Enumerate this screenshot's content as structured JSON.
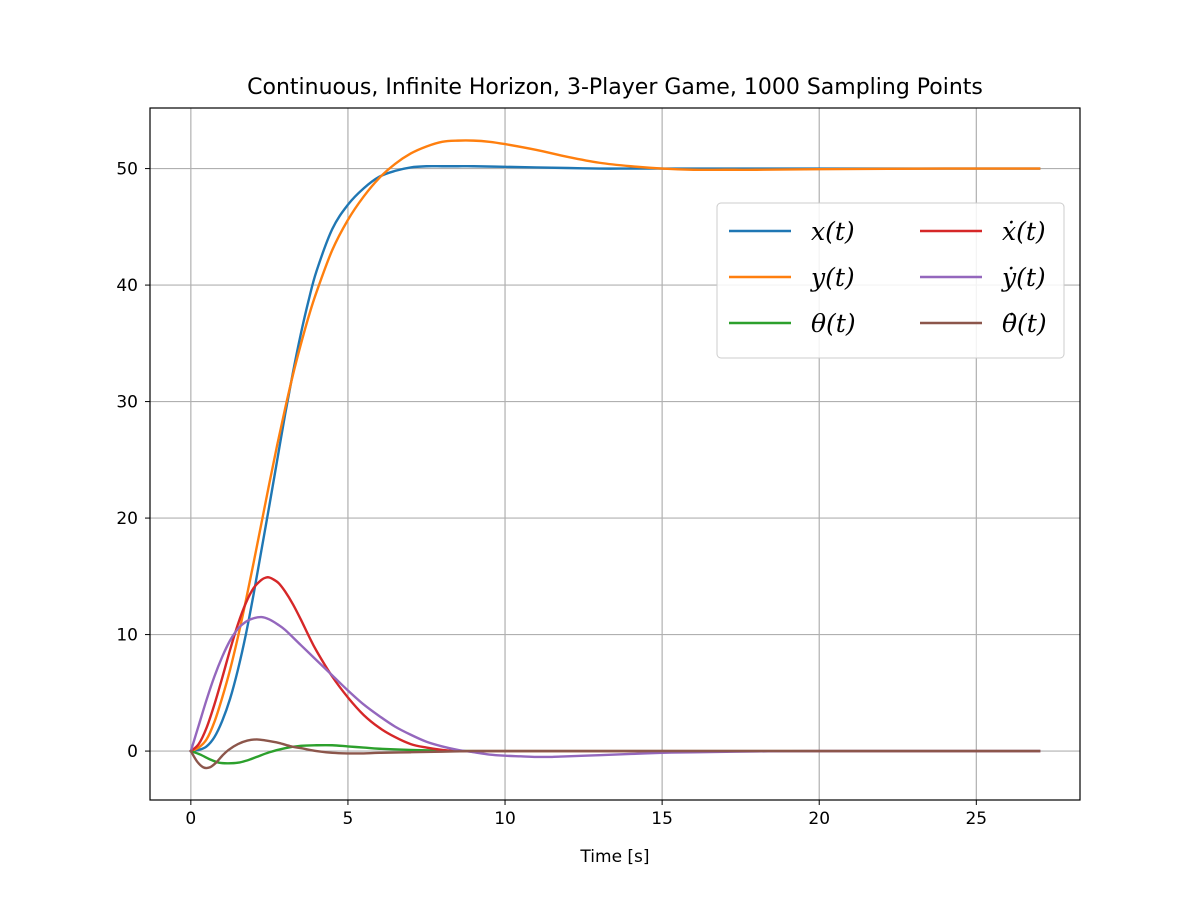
{
  "chart_data": {
    "type": "line",
    "title": "Continuous, Infinite Horizon, 3-Player Game, 1000 Sampling Points",
    "xlabel": "Time [s]",
    "ylabel": "",
    "xlim": [
      -1.3,
      28.3
    ],
    "ylim": [
      -4.2,
      55.2
    ],
    "xticks": [
      0,
      5,
      10,
      15,
      20,
      25
    ],
    "yticks": [
      0,
      10,
      20,
      30,
      40,
      50
    ],
    "grid": true,
    "legend_position": "upper-right",
    "legend_columns": 2,
    "series": [
      {
        "name": "x(t)",
        "color": "#1f77b4",
        "x": [
          0,
          0.25,
          0.5,
          0.75,
          1.0,
          1.25,
          1.5,
          1.75,
          2.0,
          2.25,
          2.5,
          2.75,
          3.0,
          3.25,
          3.5,
          3.75,
          4.0,
          4.5,
          5.0,
          5.5,
          6.0,
          6.5,
          7.0,
          7.5,
          8.0,
          8.5,
          9.0,
          10.0,
          11.0,
          12.0,
          13.0,
          14.0,
          15.0,
          17.0,
          20.0,
          24.0,
          27.0
        ],
        "y": [
          0,
          0.1,
          0.4,
          1.2,
          2.6,
          4.5,
          7.0,
          10.0,
          13.5,
          17.3,
          21.1,
          25.0,
          28.9,
          32.5,
          35.8,
          38.7,
          41.2,
          44.8,
          46.9,
          48.3,
          49.3,
          49.8,
          50.1,
          50.2,
          50.2,
          50.2,
          50.2,
          50.15,
          50.1,
          50.05,
          50.0,
          50.0,
          50.0,
          50.0,
          50.0,
          50.0,
          50.0
        ]
      },
      {
        "name": "y(t)",
        "color": "#ff7f0e",
        "x": [
          0,
          0.25,
          0.5,
          0.75,
          1.0,
          1.25,
          1.5,
          1.75,
          2.0,
          2.25,
          2.5,
          2.75,
          3.0,
          3.25,
          3.5,
          3.75,
          4.0,
          4.5,
          5.0,
          5.5,
          6.0,
          6.5,
          7.0,
          7.5,
          8.0,
          8.5,
          9.0,
          9.5,
          10.0,
          11.0,
          12.0,
          13.0,
          14.0,
          15.0,
          16.0,
          17.0,
          18.0,
          20.0,
          24.0,
          27.0
        ],
        "y": [
          0,
          0.3,
          1.0,
          2.5,
          4.6,
          7.0,
          9.8,
          12.9,
          16.2,
          19.6,
          23.0,
          26.3,
          29.4,
          32.3,
          34.9,
          37.3,
          39.4,
          43.0,
          45.6,
          47.6,
          49.2,
          50.4,
          51.3,
          51.9,
          52.3,
          52.4,
          52.4,
          52.3,
          52.1,
          51.6,
          51.0,
          50.5,
          50.2,
          50.0,
          49.9,
          49.9,
          49.9,
          49.95,
          50.0,
          50.0
        ]
      },
      {
        "name": "θ(t)",
        "color": "#2ca02c",
        "x": [
          0,
          0.3,
          0.6,
          0.9,
          1.2,
          1.5,
          1.8,
          2.1,
          2.5,
          3.0,
          3.5,
          4.0,
          4.5,
          5.0,
          5.5,
          6.0,
          7.0,
          8.0,
          9.0,
          10.0,
          12.0,
          15.0,
          20.0,
          27.0
        ],
        "y": [
          0,
          -0.3,
          -0.7,
          -1.0,
          -1.05,
          -1.0,
          -0.8,
          -0.5,
          -0.1,
          0.25,
          0.45,
          0.5,
          0.5,
          0.4,
          0.3,
          0.2,
          0.1,
          0.03,
          0.0,
          0.0,
          0.0,
          0.0,
          0.0,
          0.0
        ]
      },
      {
        "name": "ẋ(t)",
        "color": "#d62728",
        "x": [
          0,
          0.25,
          0.5,
          0.75,
          1.0,
          1.25,
          1.5,
          1.75,
          2.0,
          2.25,
          2.4,
          2.5,
          2.65,
          2.8,
          3.0,
          3.25,
          3.5,
          3.75,
          4.0,
          4.5,
          5.0,
          5.5,
          6.0,
          6.5,
          7.0,
          7.5,
          8.0,
          8.5,
          9.0,
          10.0,
          11.0,
          12.0,
          15.0,
          20.0,
          27.0
        ],
        "y": [
          0,
          0.6,
          2.0,
          4.0,
          6.3,
          8.7,
          10.9,
          12.7,
          14.0,
          14.7,
          14.9,
          14.9,
          14.7,
          14.4,
          13.7,
          12.6,
          11.3,
          9.9,
          8.6,
          6.4,
          4.6,
          3.1,
          2.0,
          1.2,
          0.6,
          0.3,
          0.1,
          0.0,
          0.0,
          0.0,
          0.0,
          0.0,
          0.0,
          0.0,
          0.0
        ]
      },
      {
        "name": "ẏ(t)",
        "color": "#9467bd",
        "x": [
          0,
          0.25,
          0.5,
          0.75,
          1.0,
          1.25,
          1.5,
          1.75,
          2.0,
          2.25,
          2.5,
          2.75,
          3.0,
          3.5,
          4.0,
          4.5,
          5.0,
          5.5,
          6.0,
          6.5,
          7.0,
          7.5,
          8.0,
          8.5,
          9.0,
          9.5,
          10.0,
          10.5,
          11.0,
          11.5,
          12.0,
          13.0,
          14.0,
          15.0,
          16.0,
          18.0,
          20.0,
          27.0
        ],
        "y": [
          0,
          2.2,
          4.4,
          6.4,
          8.1,
          9.5,
          10.5,
          11.1,
          11.4,
          11.5,
          11.3,
          10.9,
          10.4,
          9.1,
          7.8,
          6.5,
          5.2,
          4.0,
          3.0,
          2.1,
          1.4,
          0.8,
          0.4,
          0.1,
          -0.1,
          -0.3,
          -0.4,
          -0.45,
          -0.5,
          -0.5,
          -0.45,
          -0.35,
          -0.25,
          -0.15,
          -0.1,
          -0.03,
          0.0,
          0.0
        ]
      },
      {
        "name": "θ̇(t)",
        "color": "#8c564b",
        "x": [
          0,
          0.2,
          0.4,
          0.6,
          0.8,
          1.0,
          1.2,
          1.5,
          1.8,
          2.1,
          2.4,
          2.8,
          3.2,
          3.6,
          4.0,
          4.5,
          5.0,
          5.5,
          6.0,
          7.0,
          8.0,
          9.0,
          10.0,
          15.0,
          27.0
        ],
        "y": [
          0,
          -0.9,
          -1.4,
          -1.4,
          -1.0,
          -0.4,
          0.1,
          0.6,
          0.9,
          1.0,
          0.9,
          0.7,
          0.4,
          0.2,
          0.0,
          -0.15,
          -0.2,
          -0.2,
          -0.15,
          -0.1,
          -0.05,
          0.0,
          0.0,
          0.0,
          0.0
        ]
      }
    ]
  }
}
